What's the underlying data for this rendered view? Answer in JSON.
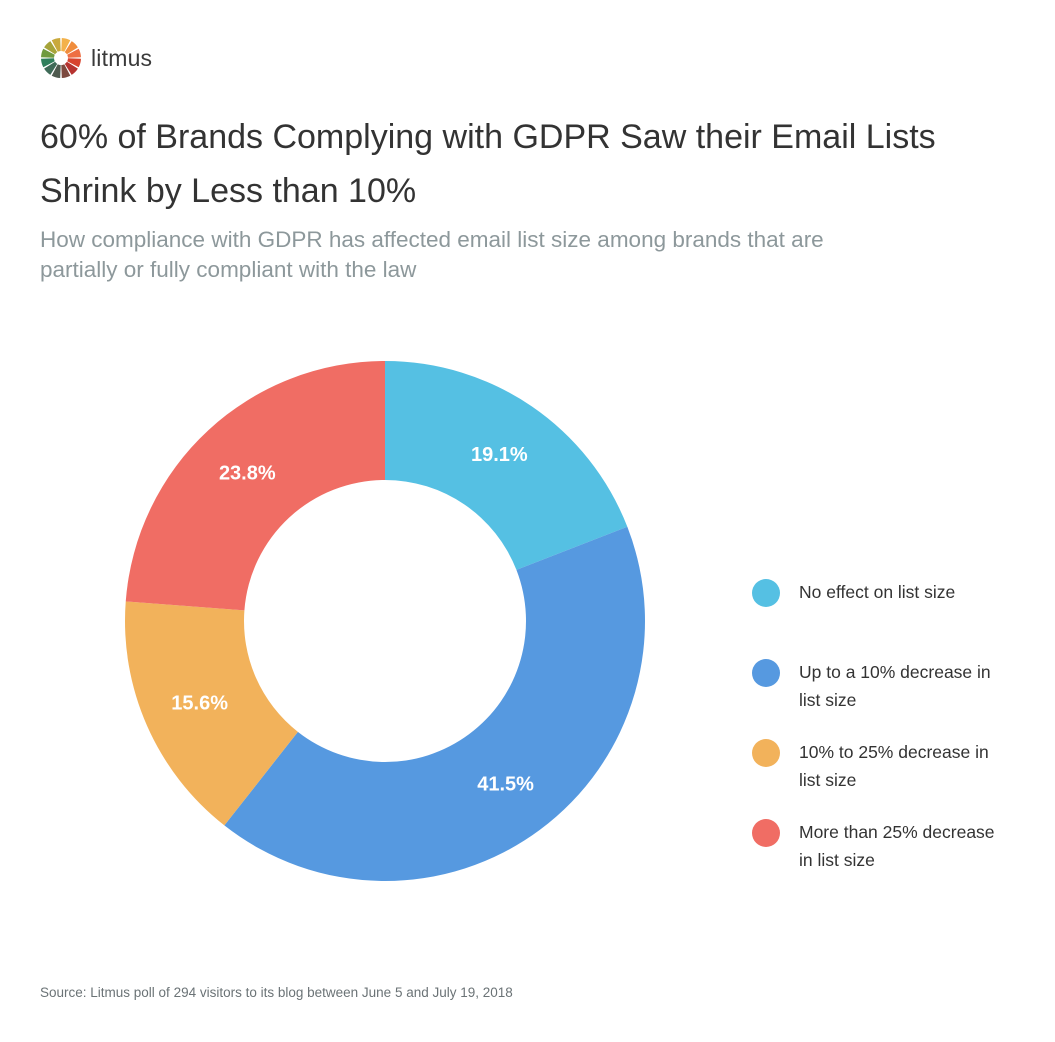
{
  "brand": {
    "name": "litmus",
    "logo_icon": "litmus-color-wheel-icon",
    "logo_colors": [
      "#f3b14a",
      "#f08c3c",
      "#ee6f43",
      "#d8432e",
      "#b63330",
      "#7d4a3f",
      "#4e5a4f",
      "#3f6b58",
      "#2f7f5c",
      "#6f9a3f",
      "#a6a43a",
      "#c9a93c"
    ]
  },
  "title": "60% of Brands Complying with GDPR Saw their Email Lists Shrink by Less than 10%",
  "subtitle": "How compliance with GDPR has affected email list size among brands that are partially or fully compliant with the law",
  "chart_data": {
    "type": "pie",
    "style": "donut",
    "start": "12 o'clock, clockwise",
    "categories": [
      "No effect on list size",
      "Up to a 10% decrease in list size",
      "10% to 25% decrease in list size",
      "More than 25% decrease in list size"
    ],
    "values": [
      19.1,
      41.5,
      15.6,
      23.8
    ],
    "data_labels": [
      "19.1%",
      "41.5%",
      "15.6%",
      "23.8%"
    ],
    "colors": [
      "#55c0e3",
      "#5699e0",
      "#f2b25b",
      "#f06d64"
    ],
    "legend_position": "right"
  },
  "legend": {
    "items": [
      {
        "label": "No effect on list size",
        "color": "#55c0e3"
      },
      {
        "label": "Up to a 10% decrease in list size",
        "color": "#5699e0"
      },
      {
        "label": "10% to 25% decrease in list size",
        "color": "#f2b25b"
      },
      {
        "label": "More than 25% decrease in list size",
        "color": "#f06d64"
      }
    ]
  },
  "source": "Source: Litmus poll of 294 visitors to its blog between June 5 and July 19, 2018"
}
